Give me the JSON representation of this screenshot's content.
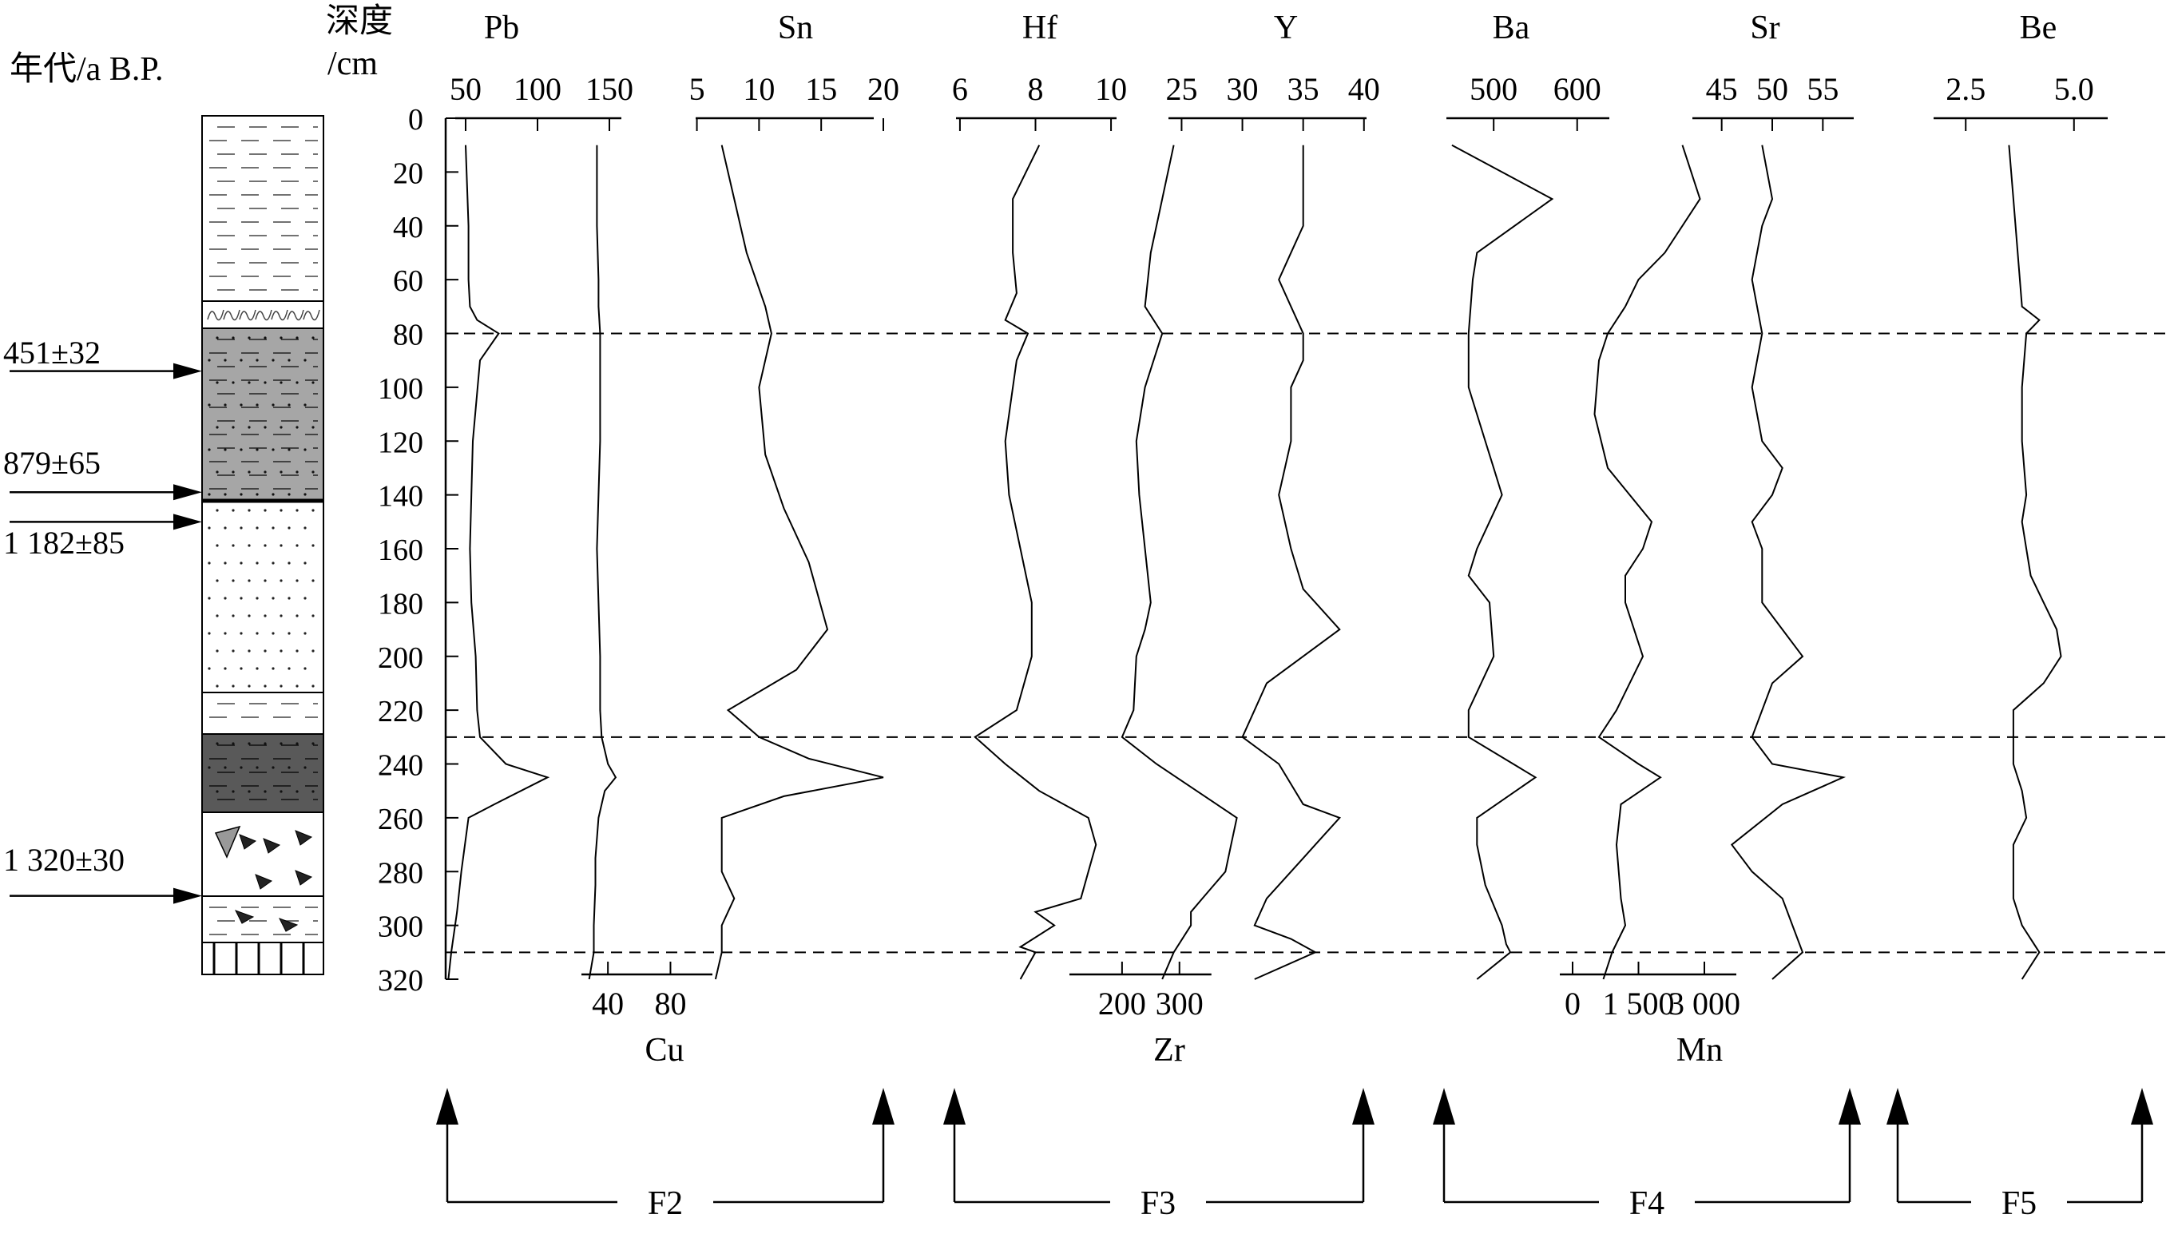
{
  "age_axis_label": "年代/a B.P.",
  "depth_axis_label_line1": "深度",
  "depth_axis_label_line2": "/cm",
  "ages": [
    {
      "label": "451±32",
      "depth": 94
    },
    {
      "label": "879±65",
      "depth": 139
    },
    {
      "label": "1 182±85",
      "depth": 150
    },
    {
      "label": "1 320±30",
      "depth": 289
    }
  ],
  "zone_labels": [
    "F2",
    "F3",
    "F4",
    "F5"
  ],
  "chart_data": {
    "type": "line",
    "subtype": "geochemical depth profile",
    "depth_axis": {
      "label": "深度 /cm",
      "range": [
        0,
        320
      ],
      "ticks": [
        0,
        20,
        40,
        60,
        80,
        100,
        120,
        140,
        160,
        180,
        200,
        220,
        240,
        260,
        280,
        300,
        320
      ],
      "inverted": true
    },
    "zone_boundaries_depth": [
      80,
      230,
      310
    ],
    "series": [
      {
        "name": "Pb",
        "axis": "top",
        "xlim": [
          35,
          165
        ],
        "ticks": [
          50,
          100,
          150
        ],
        "points": [
          [
            50,
            10
          ],
          [
            52,
            40
          ],
          [
            52,
            60
          ],
          [
            53,
            70
          ],
          [
            58,
            75
          ],
          [
            73,
            80
          ],
          [
            60,
            90
          ],
          [
            55,
            120
          ],
          [
            53,
            160
          ],
          [
            54,
            180
          ],
          [
            57,
            200
          ],
          [
            58,
            220
          ],
          [
            60,
            230
          ],
          [
            78,
            240
          ],
          [
            107,
            245
          ],
          [
            70,
            255
          ],
          [
            52,
            260
          ],
          [
            47,
            280
          ],
          [
            44,
            295
          ],
          [
            40,
            310
          ],
          [
            38,
            320
          ]
        ]
      },
      {
        "name": "Cu",
        "axis": "bottom",
        "xlim": [
          20,
          138
        ],
        "ticks": [
          40,
          80
        ],
        "points": [
          [
            33,
            10
          ],
          [
            33,
            40
          ],
          [
            34,
            60
          ],
          [
            34,
            70
          ],
          [
            35,
            80
          ],
          [
            35,
            120
          ],
          [
            33,
            160
          ],
          [
            34,
            180
          ],
          [
            35,
            200
          ],
          [
            35,
            220
          ],
          [
            36,
            230
          ],
          [
            40,
            240
          ],
          [
            45,
            245
          ],
          [
            38,
            250
          ],
          [
            34,
            260
          ],
          [
            32,
            275
          ],
          [
            32,
            285
          ],
          [
            31,
            300
          ],
          [
            31,
            310
          ],
          [
            28,
            320
          ]
        ]
      },
      {
        "name": "Sn",
        "axis": "top",
        "xlim": [
          4,
          20
        ],
        "ticks": [
          5,
          10,
          15,
          20
        ],
        "points": [
          [
            7,
            10
          ],
          [
            8,
            30
          ],
          [
            9,
            50
          ],
          [
            10.5,
            70
          ],
          [
            11,
            80
          ],
          [
            10,
            100
          ],
          [
            10.5,
            125
          ],
          [
            12,
            145
          ],
          [
            14,
            165
          ],
          [
            15.5,
            190
          ],
          [
            13,
            205
          ],
          [
            7.5,
            220
          ],
          [
            10,
            230
          ],
          [
            14,
            238
          ],
          [
            20,
            245
          ],
          [
            12,
            252
          ],
          [
            7,
            260
          ],
          [
            7,
            280
          ],
          [
            8,
            290
          ],
          [
            7,
            300
          ],
          [
            7,
            310
          ],
          [
            6.5,
            320
          ]
        ]
      },
      {
        "name": "Hf",
        "axis": "top",
        "xlim": [
          5.6,
          10.4
        ],
        "ticks": [
          6,
          8,
          10
        ],
        "points": [
          [
            8.1,
            10
          ],
          [
            7.4,
            30
          ],
          [
            7.4,
            50
          ],
          [
            7.5,
            65
          ],
          [
            7.2,
            75
          ],
          [
            7.8,
            80
          ],
          [
            7.5,
            90
          ],
          [
            7.2,
            120
          ],
          [
            7.3,
            140
          ],
          [
            7.6,
            160
          ],
          [
            7.9,
            180
          ],
          [
            7.9,
            200
          ],
          [
            7.5,
            220
          ],
          [
            6.4,
            230
          ],
          [
            7.2,
            240
          ],
          [
            8.1,
            250
          ],
          [
            9.4,
            260
          ],
          [
            9.6,
            270
          ],
          [
            9.4,
            280
          ],
          [
            9.2,
            290
          ],
          [
            8.0,
            295
          ],
          [
            8.5,
            300
          ],
          [
            7.6,
            308
          ],
          [
            8.0,
            310
          ],
          [
            7.6,
            320
          ]
        ]
      },
      {
        "name": "Zr",
        "axis": "bottom",
        "xlim": [
          100,
          420
        ],
        "ticks": [
          200,
          300
        ],
        "points": [
          [
            290,
            10
          ],
          [
            270,
            30
          ],
          [
            250,
            50
          ],
          [
            240,
            70
          ],
          [
            270,
            80
          ],
          [
            240,
            100
          ],
          [
            225,
            120
          ],
          [
            230,
            140
          ],
          [
            240,
            160
          ],
          [
            250,
            180
          ],
          [
            240,
            190
          ],
          [
            225,
            200
          ],
          [
            220,
            220
          ],
          [
            200,
            230
          ],
          [
            260,
            240
          ],
          [
            330,
            250
          ],
          [
            400,
            260
          ],
          [
            390,
            270
          ],
          [
            380,
            280
          ],
          [
            340,
            290
          ],
          [
            320,
            295
          ],
          [
            320,
            300
          ],
          [
            290,
            310
          ],
          [
            270,
            320
          ]
        ]
      },
      {
        "name": "Y",
        "axis": "top",
        "xlim": [
          23,
          41
        ],
        "ticks": [
          25,
          30,
          35,
          40
        ],
        "points": [
          [
            35,
            10
          ],
          [
            35,
            40
          ],
          [
            34,
            50
          ],
          [
            33,
            60
          ],
          [
            34,
            70
          ],
          [
            35,
            80
          ],
          [
            35,
            90
          ],
          [
            34,
            100
          ],
          [
            34,
            120
          ],
          [
            33,
            140
          ],
          [
            34,
            160
          ],
          [
            35,
            175
          ],
          [
            38,
            190
          ],
          [
            32,
            210
          ],
          [
            30,
            230
          ],
          [
            33,
            240
          ],
          [
            35,
            255
          ],
          [
            38,
            260
          ],
          [
            35,
            275
          ],
          [
            32,
            290
          ],
          [
            31,
            300
          ],
          [
            34,
            305
          ],
          [
            36,
            310
          ],
          [
            31,
            320
          ]
        ]
      },
      {
        "name": "Ba",
        "axis": "top",
        "xlim": [
          430,
          650
        ],
        "ticks": [
          500,
          600
        ],
        "points": [
          [
            450,
            10
          ],
          [
            570,
            30
          ],
          [
            480,
            50
          ],
          [
            475,
            60
          ],
          [
            470,
            80
          ],
          [
            470,
            100
          ],
          [
            490,
            120
          ],
          [
            500,
            130
          ],
          [
            510,
            140
          ],
          [
            480,
            160
          ],
          [
            470,
            170
          ],
          [
            495,
            180
          ],
          [
            500,
            200
          ],
          [
            470,
            220
          ],
          [
            470,
            230
          ],
          [
            550,
            245
          ],
          [
            480,
            260
          ],
          [
            480,
            270
          ],
          [
            490,
            285
          ],
          [
            510,
            300
          ],
          [
            515,
            307
          ],
          [
            520,
            310
          ],
          [
            480,
            320
          ]
        ]
      },
      {
        "name": "Mn",
        "axis": "bottom",
        "xlim": [
          -400,
          3800
        ],
        "ticks": [
          0,
          1500,
          3000
        ],
        "points": [
          [
            2500,
            10
          ],
          [
            2900,
            30
          ],
          [
            2100,
            50
          ],
          [
            1500,
            60
          ],
          [
            1200,
            70
          ],
          [
            800,
            80
          ],
          [
            600,
            90
          ],
          [
            500,
            110
          ],
          [
            800,
            130
          ],
          [
            1800,
            150
          ],
          [
            1600,
            160
          ],
          [
            1200,
            170
          ],
          [
            1200,
            180
          ],
          [
            1600,
            200
          ],
          [
            1000,
            220
          ],
          [
            600,
            230
          ],
          [
            1500,
            240
          ],
          [
            2000,
            245
          ],
          [
            1100,
            255
          ],
          [
            1000,
            270
          ],
          [
            1100,
            290
          ],
          [
            1200,
            300
          ],
          [
            900,
            310
          ],
          [
            700,
            320
          ]
        ]
      },
      {
        "name": "Sr",
        "axis": "top",
        "xlim": [
          41,
          59
        ],
        "ticks": [
          45,
          50,
          55
        ],
        "points": [
          [
            49,
            10
          ],
          [
            50,
            30
          ],
          [
            49,
            40
          ],
          [
            48,
            60
          ],
          [
            49,
            80
          ],
          [
            48,
            100
          ],
          [
            49,
            120
          ],
          [
            51,
            130
          ],
          [
            50,
            140
          ],
          [
            48,
            150
          ],
          [
            49,
            160
          ],
          [
            49,
            180
          ],
          [
            51,
            190
          ],
          [
            53,
            200
          ],
          [
            50,
            210
          ],
          [
            48,
            230
          ],
          [
            50,
            240
          ],
          [
            57,
            245
          ],
          [
            51,
            255
          ],
          [
            46,
            270
          ],
          [
            48,
            280
          ],
          [
            51,
            290
          ],
          [
            52,
            300
          ],
          [
            53,
            310
          ],
          [
            50,
            320
          ]
        ]
      },
      {
        "name": "Be",
        "axis": "top",
        "xlim": [
          1.5,
          6.0
        ],
        "ticks": [
          2.5,
          5.0
        ],
        "points": [
          [
            3.5,
            10
          ],
          [
            3.6,
            30
          ],
          [
            3.7,
            50
          ],
          [
            3.8,
            70
          ],
          [
            4.2,
            75
          ],
          [
            3.9,
            80
          ],
          [
            3.8,
            100
          ],
          [
            3.8,
            120
          ],
          [
            3.9,
            140
          ],
          [
            3.8,
            150
          ],
          [
            3.9,
            160
          ],
          [
            4.0,
            170
          ],
          [
            4.3,
            180
          ],
          [
            4.6,
            190
          ],
          [
            4.7,
            200
          ],
          [
            4.3,
            210
          ],
          [
            3.6,
            220
          ],
          [
            3.6,
            240
          ],
          [
            3.8,
            250
          ],
          [
            3.9,
            260
          ],
          [
            3.6,
            270
          ],
          [
            3.6,
            280
          ],
          [
            3.6,
            290
          ],
          [
            3.8,
            300
          ],
          [
            4.2,
            310
          ],
          [
            3.8,
            320
          ]
        ]
      }
    ]
  }
}
